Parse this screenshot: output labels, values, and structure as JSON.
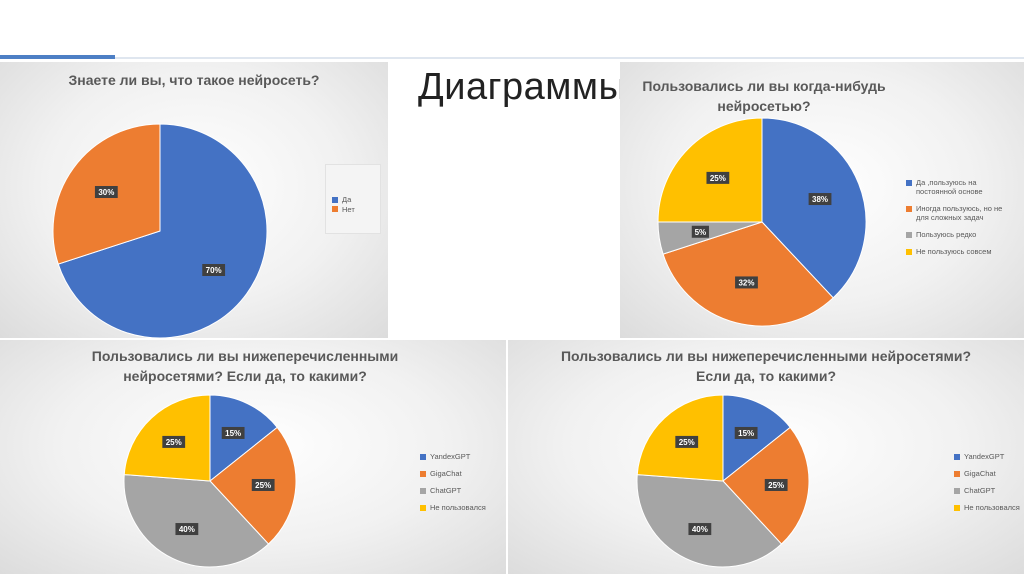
{
  "slide": {
    "title": "Диаграммы"
  },
  "chart_data": [
    {
      "type": "pie",
      "title": "Знаете ли вы, что такое нейросеть?",
      "labels": [
        "Да",
        "Нет"
      ],
      "values": [
        70,
        30
      ],
      "data_labels": [
        "70%",
        "30%"
      ],
      "colors": [
        "#4472c4",
        "#ed7d31"
      ],
      "legend": "right"
    },
    {
      "type": "pie",
      "title": "Пользовались ли вы когда-нибудь\nнейросетью?",
      "labels": [
        "Да ,пользуюсь на постоянной основе",
        "Иногда пользуюсь, но не для сложных задач",
        "Пользуюсь редко",
        "Не пользуюсь совсем"
      ],
      "values": [
        38,
        32,
        5,
        25
      ],
      "data_labels": [
        "38%",
        "32%",
        "5%",
        "25%"
      ],
      "colors": [
        "#4472c4",
        "#ed7d31",
        "#a5a5a5",
        "#ffc000"
      ],
      "legend": "right"
    },
    {
      "type": "pie",
      "title": "Пользовались ли вы нижеперечисленными\nнейросетями? Если да, то какими?",
      "labels": [
        "YandexGPT",
        "GigaChat",
        "ChatGPT",
        "Не пользовался"
      ],
      "values": [
        15,
        25,
        40,
        25
      ],
      "data_labels": [
        "15%",
        "25%",
        "40%",
        "25%"
      ],
      "colors": [
        "#4472c4",
        "#ed7d31",
        "#a5a5a5",
        "#ffc000"
      ],
      "legend": "right"
    },
    {
      "type": "pie",
      "title": "Пользовались ли вы нижеперечисленными нейросетями?\nЕсли да, то какими?",
      "labels": [
        "YandexGPT",
        "GigaChat",
        "ChatGPT",
        "Не пользовался"
      ],
      "values": [
        15,
        25,
        40,
        25
      ],
      "data_labels": [
        "15%",
        "25%",
        "40%",
        "25%"
      ],
      "colors": [
        "#4472c4",
        "#ed7d31",
        "#a5a5a5",
        "#ffc000"
      ],
      "legend": "right"
    }
  ]
}
